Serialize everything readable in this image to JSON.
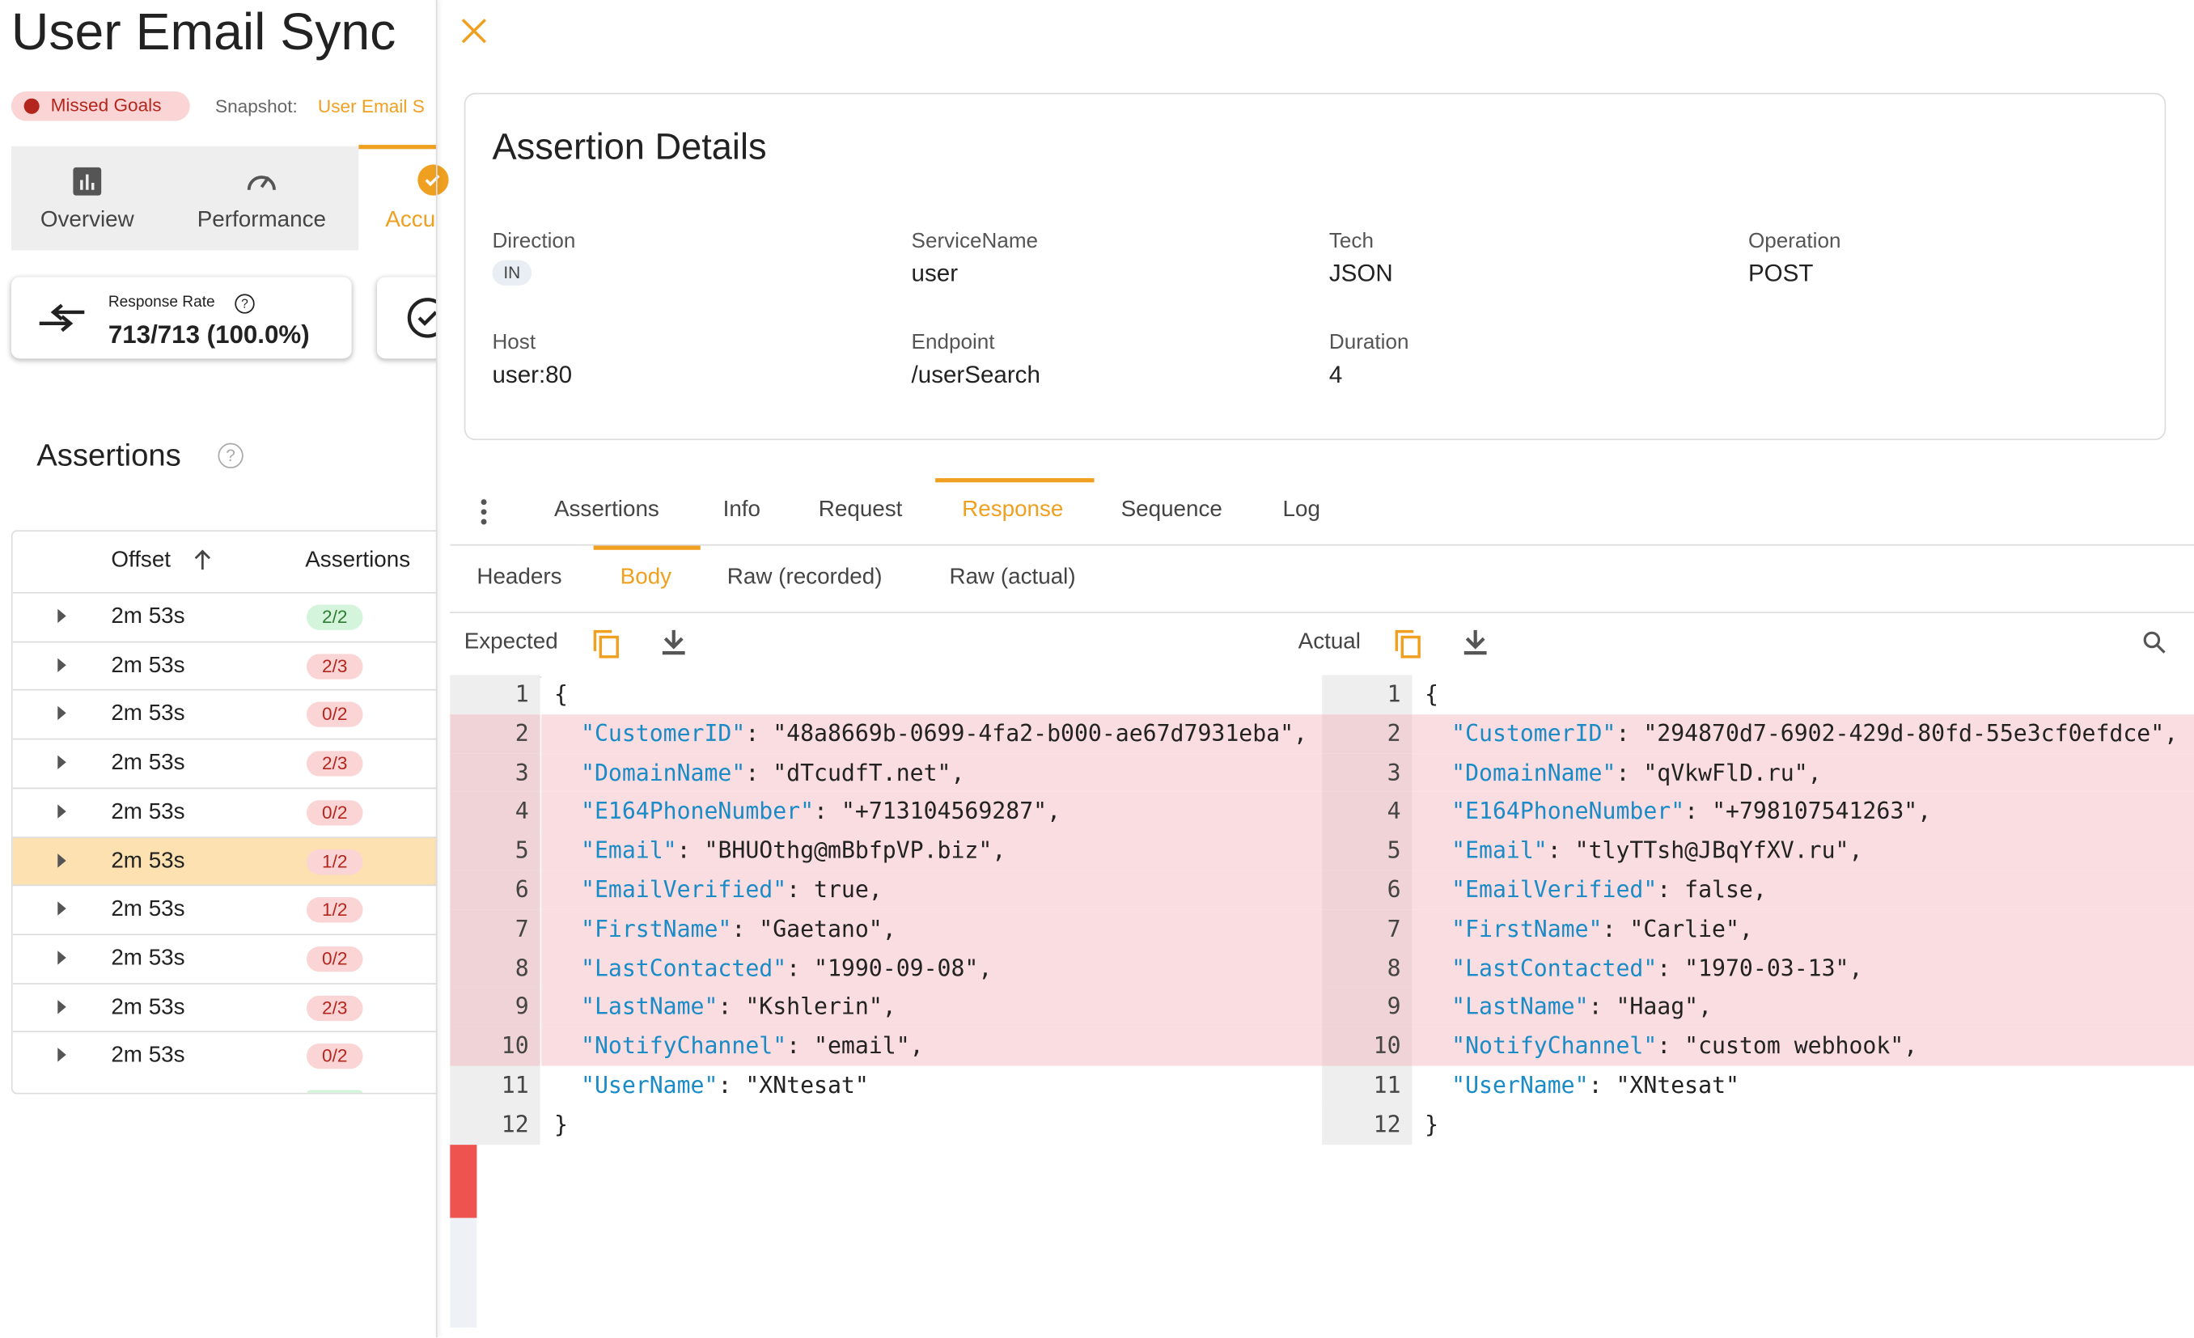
{
  "header": {
    "title": "User Email Sync",
    "status": "Missed Goals",
    "snapshot_label": "Snapshot:",
    "snapshot_value": "User Email S"
  },
  "nav_tabs": [
    "Overview",
    "Performance",
    "Accu"
  ],
  "metric": {
    "label": "Response Rate",
    "value": "713/713 (100.0%)"
  },
  "assertions": {
    "title": "Assertions",
    "columns": [
      "Offset",
      "Assertions"
    ],
    "selected_row": 5,
    "rows": [
      {
        "offset": "2m 53s",
        "result": "2/2",
        "color": "green"
      },
      {
        "offset": "2m 53s",
        "result": "2/3",
        "color": "red"
      },
      {
        "offset": "2m 53s",
        "result": "0/2",
        "color": "red"
      },
      {
        "offset": "2m 53s",
        "result": "2/3",
        "color": "red"
      },
      {
        "offset": "2m 53s",
        "result": "0/2",
        "color": "red"
      },
      {
        "offset": "2m 53s",
        "result": "1/2",
        "color": "red"
      },
      {
        "offset": "2m 53s",
        "result": "1/2",
        "color": "red"
      },
      {
        "offset": "2m 53s",
        "result": "0/2",
        "color": "red"
      },
      {
        "offset": "2m 53s",
        "result": "2/3",
        "color": "red"
      },
      {
        "offset": "2m 53s",
        "result": "0/2",
        "color": "red"
      }
    ]
  },
  "details": {
    "title": "Assertion Details",
    "fields": [
      {
        "label": "Direction",
        "value": "IN"
      },
      {
        "label": "ServiceName",
        "value": "user"
      },
      {
        "label": "Tech",
        "value": "JSON"
      },
      {
        "label": "Operation",
        "value": "POST"
      },
      {
        "label": "Host",
        "value": "user:80"
      },
      {
        "label": "Endpoint",
        "value": "/userSearch"
      },
      {
        "label": "Duration",
        "value": "4"
      }
    ]
  },
  "tabs": {
    "items": [
      "Assertions",
      "Info",
      "Request",
      "Response",
      "Sequence",
      "Log"
    ],
    "active": 3
  },
  "subtabs": {
    "items": [
      "Headers",
      "Body",
      "Raw (recorded)",
      "Raw (actual)"
    ],
    "active": 1
  },
  "diff": {
    "expected_label": "Expected",
    "actual_label": "Actual",
    "expected": [
      {
        "number": 1,
        "text": "{",
        "changed": false
      },
      {
        "number": 2,
        "key": "\"CustomerID\"",
        "text": ": \"48a8669b-0699-4fa2-b000-ae67d7931eba\",",
        "changed": true
      },
      {
        "number": 3,
        "key": "\"DomainName\"",
        "text": ": \"dTcudfT.net\",",
        "changed": true
      },
      {
        "number": 4,
        "key": "\"E164PhoneNumber\"",
        "text": ": \"+713104569287\",",
        "changed": true
      },
      {
        "number": 5,
        "key": "\"Email\"",
        "text": ": \"BHUOthg@mBbfpVP.biz\",",
        "changed": true
      },
      {
        "number": 6,
        "key": "\"EmailVerified\"",
        "text": ": true,",
        "changed": true
      },
      {
        "number": 7,
        "key": "\"FirstName\"",
        "text": ": \"Gaetano\",",
        "changed": true
      },
      {
        "number": 8,
        "key": "\"LastContacted\"",
        "text": ": \"1990-09-08\",",
        "changed": true
      },
      {
        "number": 9,
        "key": "\"LastName\"",
        "text": ": \"Kshlerin\",",
        "changed": true
      },
      {
        "number": 10,
        "key": "\"NotifyChannel\"",
        "text": ": \"email\",",
        "changed": true
      },
      {
        "number": 11,
        "key": "\"UserName\"",
        "text": ": \"XNtesat\"",
        "changed": false
      },
      {
        "number": 12,
        "text": "}",
        "changed": false
      }
    ],
    "actual": [
      {
        "number": 1,
        "text": "{",
        "changed": false
      },
      {
        "number": 2,
        "key": "\"CustomerID\"",
        "text": ": \"294870d7-6902-429d-80fd-55e3cf0efdce\",",
        "changed": true
      },
      {
        "number": 3,
        "key": "\"DomainName\"",
        "text": ": \"qVkwFlD.ru\",",
        "changed": true
      },
      {
        "number": 4,
        "key": "\"E164PhoneNumber\"",
        "text": ": \"+798107541263\",",
        "changed": true
      },
      {
        "number": 5,
        "key": "\"Email\"",
        "text": ": \"tlyTTsh@JBqYfXV.ru\",",
        "changed": true
      },
      {
        "number": 6,
        "key": "\"EmailVerified\"",
        "text": ": false,",
        "changed": true
      },
      {
        "number": 7,
        "key": "\"FirstName\"",
        "text": ": \"Carlie\",",
        "changed": true
      },
      {
        "number": 8,
        "key": "\"LastContacted\"",
        "text": ": \"1970-03-13\",",
        "changed": true
      },
      {
        "number": 9,
        "key": "\"LastName\"",
        "text": ": \"Haag\",",
        "changed": true
      },
      {
        "number": 10,
        "key": "\"NotifyChannel\"",
        "text": ": \"custom webhook\",",
        "changed": true
      },
      {
        "number": 11,
        "key": "\"UserName\"",
        "text": ": \"XNtesat\"",
        "changed": false
      },
      {
        "number": 12,
        "text": "}",
        "changed": false
      }
    ]
  }
}
